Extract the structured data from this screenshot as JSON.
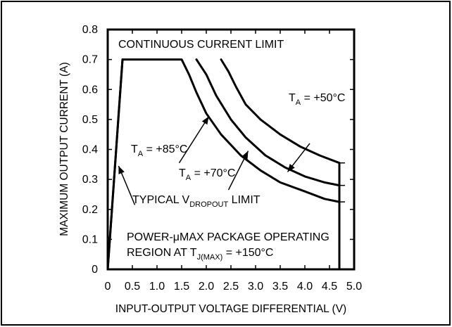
{
  "chart_data": {
    "type": "line",
    "title": "",
    "xlabel": "INPUT-OUTPUT VOLTAGE DIFFERENTIAL (V)",
    "ylabel": "MAXIMUM OUTPUT CURRENT (A)",
    "xlim": [
      0,
      5.0
    ],
    "ylim": [
      0,
      0.8
    ],
    "grid": false,
    "xticks": [
      "0",
      "0.5",
      "1.0",
      "1.5",
      "2.0",
      "2.5",
      "3.0",
      "3.5",
      "4.0",
      "4.5",
      "5.0"
    ],
    "yticks": [
      "0",
      "0.1",
      "0.2",
      "0.3",
      "0.4",
      "0.5",
      "0.6",
      "0.7",
      "0.8"
    ],
    "series": [
      {
        "name": "TA = +85°C",
        "x": [
          0,
          0.3,
          1.5,
          1.65,
          1.8,
          2.0,
          2.3,
          2.7,
          3.1,
          3.5,
          4.0,
          4.4,
          4.7
        ],
        "y": [
          0,
          0.7,
          0.7,
          0.65,
          0.59,
          0.52,
          0.45,
          0.38,
          0.33,
          0.29,
          0.26,
          0.235,
          0.225
        ]
      },
      {
        "name": "TA = +70°C",
        "x": [
          1.8,
          2.0,
          2.2,
          2.5,
          2.8,
          3.2,
          3.6,
          4.0,
          4.4,
          4.7
        ],
        "y": [
          0.7,
          0.65,
          0.58,
          0.5,
          0.44,
          0.38,
          0.34,
          0.31,
          0.29,
          0.28
        ]
      },
      {
        "name": "TA = +50°C",
        "x": [
          2.3,
          2.45,
          2.6,
          2.8,
          3.1,
          3.5,
          3.9,
          4.3,
          4.7
        ],
        "y": [
          0.7,
          0.66,
          0.61,
          0.55,
          0.5,
          0.45,
          0.41,
          0.38,
          0.355
        ]
      }
    ],
    "dropout_limit": {
      "x": [
        0.0,
        0.3
      ],
      "y": [
        0.0,
        0.7
      ]
    },
    "package_boundary_x": 4.7,
    "annotations": {
      "continuous": "CONTINUOUS CURRENT LIMIT",
      "ta50": {
        "prefix": "T",
        "sub": "A",
        "suffix": " = +50°C"
      },
      "ta85": {
        "prefix": "T",
        "sub": "A",
        "suffix": " = +85°C"
      },
      "ta70": {
        "prefix": "T",
        "sub": "A",
        "suffix": " = +70°C"
      },
      "dropout": {
        "prefix": "TYPICAL V",
        "sub": "DROPOUT",
        "suffix": " LIMIT"
      },
      "region_line1": "POWER-μMAX PACKAGE OPERATING",
      "region_line2": {
        "prefix": "REGION AT T",
        "sub": "J(MAX)",
        "suffix": " = +150°C"
      }
    }
  }
}
